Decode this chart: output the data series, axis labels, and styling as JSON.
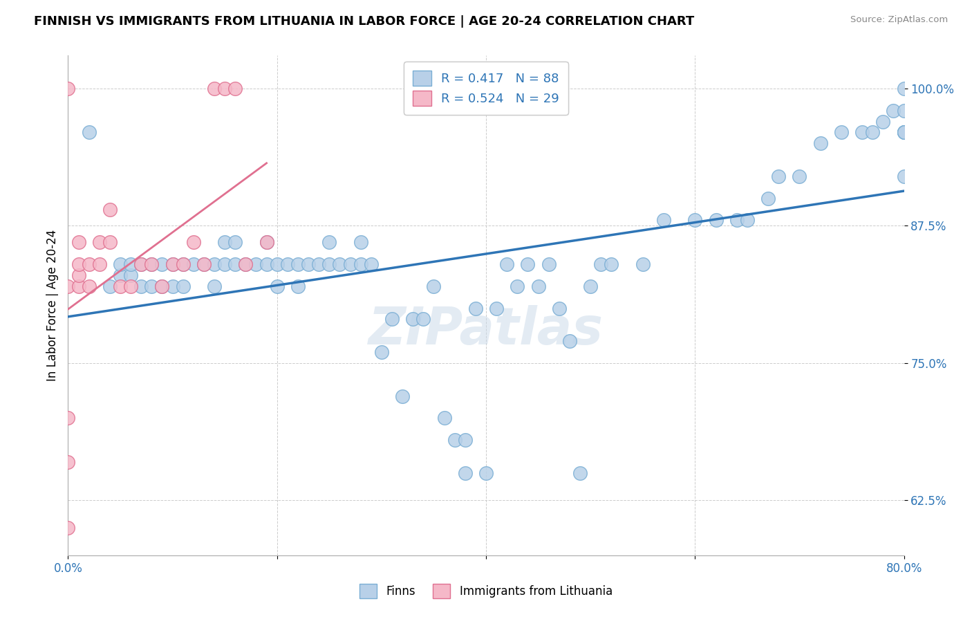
{
  "title": "FINNISH VS IMMIGRANTS FROM LITHUANIA IN LABOR FORCE | AGE 20-24 CORRELATION CHART",
  "source": "Source: ZipAtlas.com",
  "ylabel": "In Labor Force | Age 20-24",
  "xlim": [
    0.0,
    0.8
  ],
  "ylim": [
    0.575,
    1.03
  ],
  "ytick_positions": [
    0.625,
    0.75,
    0.875,
    1.0
  ],
  "ytick_labels": [
    "62.5%",
    "75.0%",
    "87.5%",
    "100.0%"
  ],
  "watermark": "ZIPatlas",
  "R_finns": 0.417,
  "N_finns": 88,
  "R_lith": 0.524,
  "N_lith": 29,
  "legend_label_finns": "Finns",
  "legend_label_lith": "Immigrants from Lithuania",
  "dot_color_finns": "#b8d0e8",
  "dot_edge_finns": "#7aaed4",
  "dot_color_lith": "#f5b8c8",
  "dot_edge_lith": "#e07090",
  "line_color_finns": "#2e75b6",
  "line_color_lith": "#e07090",
  "finns_x": [
    0.02,
    0.04,
    0.05,
    0.05,
    0.06,
    0.06,
    0.07,
    0.07,
    0.08,
    0.08,
    0.09,
    0.09,
    0.1,
    0.1,
    0.11,
    0.11,
    0.12,
    0.13,
    0.14,
    0.14,
    0.15,
    0.15,
    0.16,
    0.16,
    0.17,
    0.18,
    0.19,
    0.19,
    0.2,
    0.2,
    0.21,
    0.22,
    0.22,
    0.23,
    0.24,
    0.25,
    0.25,
    0.26,
    0.27,
    0.28,
    0.28,
    0.29,
    0.3,
    0.31,
    0.32,
    0.33,
    0.34,
    0.35,
    0.36,
    0.37,
    0.38,
    0.38,
    0.39,
    0.4,
    0.41,
    0.42,
    0.43,
    0.44,
    0.45,
    0.46,
    0.47,
    0.48,
    0.49,
    0.5,
    0.51,
    0.52,
    0.55,
    0.57,
    0.6,
    0.62,
    0.64,
    0.65,
    0.67,
    0.68,
    0.7,
    0.72,
    0.74,
    0.76,
    0.77,
    0.78,
    0.79,
    0.8,
    0.8,
    0.8,
    0.8,
    0.8,
    0.8,
    0.8
  ],
  "finns_y": [
    0.96,
    0.82,
    0.83,
    0.84,
    0.83,
    0.84,
    0.82,
    0.84,
    0.82,
    0.84,
    0.82,
    0.84,
    0.82,
    0.84,
    0.82,
    0.84,
    0.84,
    0.84,
    0.82,
    0.84,
    0.84,
    0.86,
    0.84,
    0.86,
    0.84,
    0.84,
    0.84,
    0.86,
    0.82,
    0.84,
    0.84,
    0.82,
    0.84,
    0.84,
    0.84,
    0.84,
    0.86,
    0.84,
    0.84,
    0.84,
    0.86,
    0.84,
    0.76,
    0.79,
    0.72,
    0.79,
    0.79,
    0.82,
    0.7,
    0.68,
    0.65,
    0.68,
    0.8,
    0.65,
    0.8,
    0.84,
    0.82,
    0.84,
    0.82,
    0.84,
    0.8,
    0.77,
    0.65,
    0.82,
    0.84,
    0.84,
    0.84,
    0.88,
    0.88,
    0.88,
    0.88,
    0.88,
    0.9,
    0.92,
    0.92,
    0.95,
    0.96,
    0.96,
    0.96,
    0.97,
    0.98,
    0.92,
    0.96,
    0.98,
    0.96,
    0.96,
    0.96,
    1.0
  ],
  "lith_x": [
    0.0,
    0.0,
    0.0,
    0.0,
    0.0,
    0.01,
    0.01,
    0.01,
    0.01,
    0.02,
    0.02,
    0.03,
    0.03,
    0.04,
    0.04,
    0.05,
    0.06,
    0.07,
    0.08,
    0.09,
    0.1,
    0.11,
    0.12,
    0.13,
    0.14,
    0.15,
    0.16,
    0.17,
    0.19
  ],
  "lith_y": [
    0.6,
    0.66,
    0.7,
    0.82,
    1.0,
    0.82,
    0.83,
    0.84,
    0.86,
    0.82,
    0.84,
    0.84,
    0.86,
    0.86,
    0.89,
    0.82,
    0.82,
    0.84,
    0.84,
    0.82,
    0.84,
    0.84,
    0.86,
    0.84,
    1.0,
    1.0,
    1.0,
    0.84,
    0.86
  ]
}
